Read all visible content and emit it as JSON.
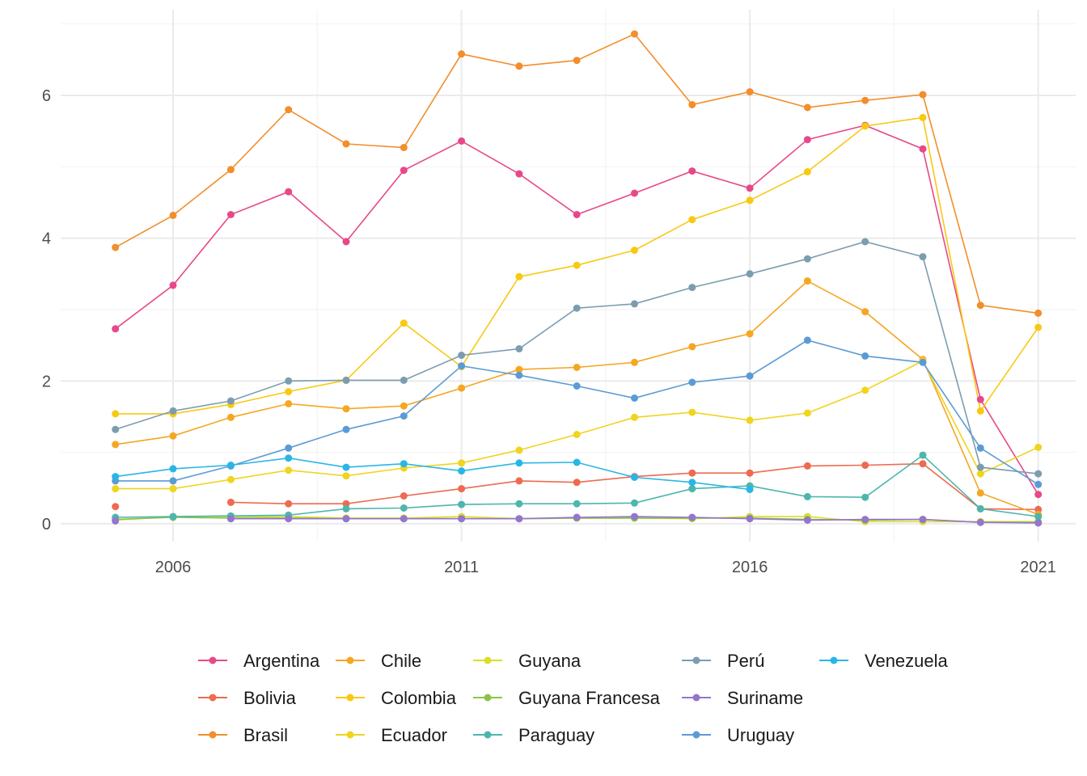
{
  "chart_data": {
    "type": "line",
    "title": "",
    "xlabel": "",
    "ylabel": "",
    "x": [
      2005,
      2006,
      2007,
      2008,
      2009,
      2010,
      2011,
      2012,
      2013,
      2014,
      2015,
      2016,
      2017,
      2018,
      2019,
      2020,
      2021
    ],
    "xlim": [
      2004.05,
      2021.65
    ],
    "ylim": [
      -0.25,
      7.2
    ],
    "x_ticks": [
      2006,
      2011,
      2016,
      2021
    ],
    "x_tick_labels": [
      "2006",
      "2011",
      "2016",
      "2021"
    ],
    "y_ticks": [
      0,
      2,
      4,
      6
    ],
    "y_tick_labels": [
      "0",
      "2",
      "4",
      "6"
    ],
    "grid": true,
    "legend_position": "bottom",
    "series": [
      {
        "name": "Argentina",
        "color": "#E8488A",
        "values": [
          2.73,
          3.34,
          4.33,
          4.65,
          3.95,
          4.95,
          5.36,
          4.9,
          4.33,
          4.63,
          4.94,
          4.7,
          5.38,
          5.58,
          5.25,
          1.74,
          0.41
        ]
      },
      {
        "name": "Bolivia",
        "color": "#EE6A50",
        "values": [
          0.24,
          null,
          0.3,
          0.28,
          0.28,
          0.39,
          0.49,
          0.6,
          0.58,
          0.66,
          0.71,
          0.71,
          0.81,
          0.82,
          0.84,
          0.21,
          0.2
        ]
      },
      {
        "name": "Brasil",
        "color": "#F28E2B",
        "values": [
          3.87,
          4.32,
          4.96,
          5.8,
          5.32,
          5.27,
          6.58,
          6.41,
          6.49,
          6.86,
          5.87,
          6.05,
          5.83,
          5.93,
          6.01,
          3.06,
          2.95
        ]
      },
      {
        "name": "Chile",
        "color": "#F5A623",
        "values": [
          1.11,
          1.23,
          1.49,
          1.68,
          1.61,
          1.65,
          1.9,
          2.16,
          2.19,
          2.26,
          2.48,
          2.66,
          3.4,
          2.97,
          2.3,
          0.43,
          0.13
        ]
      },
      {
        "name": "Colombia",
        "color": "#F8C912",
        "values": [
          1.54,
          1.54,
          1.67,
          1.85,
          2.01,
          2.81,
          2.2,
          3.46,
          3.62,
          3.83,
          4.26,
          4.53,
          4.93,
          5.57,
          5.69,
          1.58,
          2.75
        ]
      },
      {
        "name": "Ecuador",
        "color": "#F0D41E",
        "values": [
          0.49,
          0.49,
          0.62,
          0.75,
          0.67,
          0.78,
          0.85,
          1.03,
          1.25,
          1.49,
          1.56,
          1.45,
          1.55,
          1.87,
          2.28,
          0.7,
          1.07
        ]
      },
      {
        "name": "Guyana",
        "color": "#D9DE2A",
        "values": [
          0.05,
          0.1,
          0.1,
          0.1,
          0.08,
          0.08,
          0.1,
          0.07,
          0.08,
          0.08,
          0.07,
          0.1,
          0.1,
          0.03,
          0.03,
          0.03,
          0.03
        ]
      },
      {
        "name": "Guyana Francesa",
        "color": "#8BC34A",
        "values": [
          0.06,
          0.09,
          0.08,
          0.08,
          0.07,
          0.07,
          0.07,
          0.07,
          0.08,
          0.08,
          0.08,
          0.08,
          0.06,
          0.05,
          0.06,
          0.02,
          0.02
        ]
      },
      {
        "name": "Paraguay",
        "color": "#4DB6AC",
        "values": [
          0.09,
          0.1,
          0.11,
          0.12,
          0.21,
          0.22,
          0.27,
          0.28,
          0.28,
          0.29,
          0.49,
          0.53,
          0.38,
          0.37,
          0.96,
          0.21,
          0.1
        ]
      },
      {
        "name": "Perú",
        "color": "#7C9CB0",
        "values": [
          1.32,
          1.58,
          1.72,
          2.0,
          2.01,
          2.01,
          2.36,
          2.45,
          3.02,
          3.08,
          3.31,
          3.5,
          3.71,
          3.95,
          3.74,
          0.79,
          0.7
        ]
      },
      {
        "name": "Suriname",
        "color": "#9575CD",
        "values": [
          0.04,
          null,
          0.07,
          0.07,
          0.07,
          0.07,
          0.07,
          0.07,
          0.09,
          0.1,
          0.09,
          0.07,
          0.05,
          0.06,
          0.06,
          0.02,
          0.01
        ]
      },
      {
        "name": "Uruguay",
        "color": "#5B9BD5",
        "values": [
          0.6,
          0.6,
          0.81,
          1.06,
          1.32,
          1.51,
          2.21,
          2.08,
          1.93,
          1.76,
          1.98,
          2.07,
          2.57,
          2.35,
          2.26,
          1.06,
          0.55
        ]
      },
      {
        "name": "Venezuela",
        "color": "#29B6E6",
        "values": [
          0.66,
          0.77,
          0.82,
          0.92,
          0.79,
          0.84,
          0.74,
          0.85,
          0.86,
          0.65,
          0.58,
          0.48,
          null,
          null,
          null,
          null,
          null
        ]
      }
    ]
  }
}
